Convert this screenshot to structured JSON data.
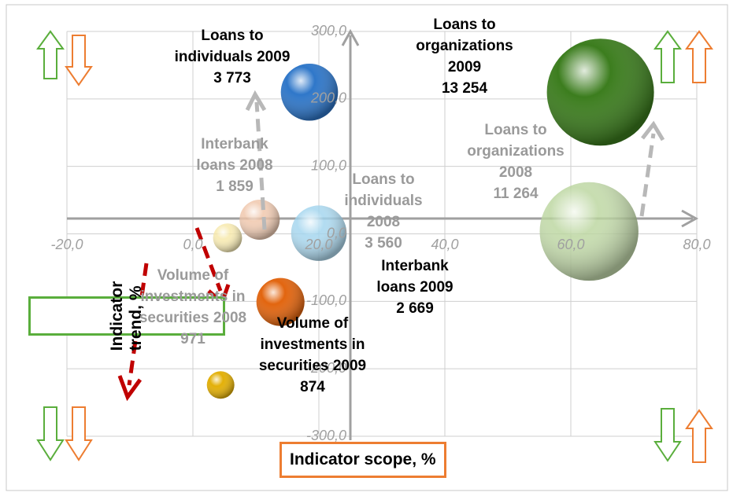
{
  "chart_data": {
    "type": "bubble",
    "x_label": "Indicator scope, %",
    "y_label": "Indicator trend, %",
    "xlim": [
      -20,
      80
    ],
    "ylim": [
      -300,
      300
    ],
    "xticks": [
      {
        "value": -20,
        "label": "-20,0"
      },
      {
        "value": 0,
        "label": "0,0"
      },
      {
        "value": 20,
        "label": "20,0"
      },
      {
        "value": 40,
        "label": "40,0"
      },
      {
        "value": 60,
        "label": "60,0"
      },
      {
        "value": 80,
        "label": "80,0"
      }
    ],
    "yticks": [
      {
        "value": 300,
        "label": "300,0"
      },
      {
        "value": 200,
        "label": "200,0"
      },
      {
        "value": 100,
        "label": "100,0"
      },
      {
        "value": 0,
        "label": "0,0"
      },
      {
        "value": -100,
        "label": "-100,0"
      },
      {
        "value": -200,
        "label": "-200,0"
      },
      {
        "value": -300,
        "label": "-300,0"
      }
    ],
    "grid": true,
    "points": [
      {
        "name": "Loans to individuals 2009",
        "color": "#2f77c9",
        "x": 18.5,
        "y": 210,
        "size": 3773,
        "size_label": "3 773"
      },
      {
        "name": "Loans to organizations 2009",
        "color": "#3c7d1e",
        "x": 64.7,
        "y": 210,
        "size": 13254,
        "size_label": "13 254"
      },
      {
        "name": "Loans to organizations 2008",
        "color": "#b9d59c",
        "x": 62.9,
        "y": 3.5,
        "size": 11264,
        "size_label": "11 264"
      },
      {
        "name": "Loans to individuals 2008",
        "color": "#9fd3ee",
        "x": 20,
        "y": 1,
        "size": 3560,
        "size_label": "3 560"
      },
      {
        "name": "Interbank loans 2008",
        "color": "#efc3a6",
        "x": 10.6,
        "y": 21,
        "size": 1859,
        "size_label": "1 859"
      },
      {
        "name": "Interbank loans 2009",
        "color": "#e2650f",
        "x": 13.9,
        "y": -101,
        "size": 2669,
        "size_label": "2 669"
      },
      {
        "name": "Volume of investments in securities 2008",
        "color": "#f6e7a6",
        "x": 5.5,
        "y": -6,
        "size": 971,
        "size_label": "971"
      },
      {
        "name": "Volume of investments in securities 2009",
        "color": "#e3b008",
        "x": 4.4,
        "y": -224,
        "size": 874,
        "size_label": "874"
      }
    ]
  }
}
